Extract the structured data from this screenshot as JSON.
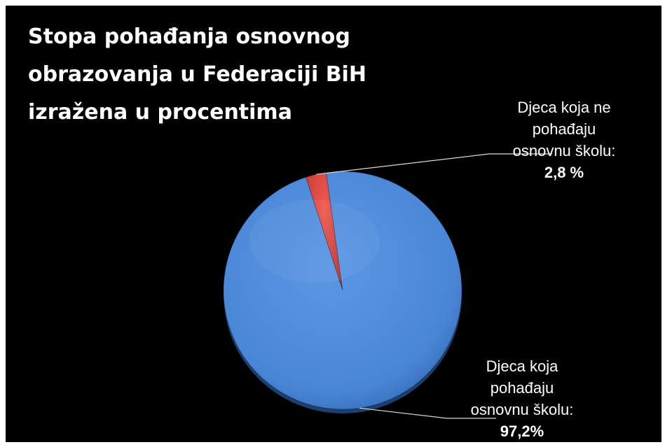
{
  "chart_data": {
    "type": "pie",
    "title": "Stopa pohađanja osnovnog obrazovanja u Federaciji BiH izražena u procentima",
    "start_angle_deg": -18,
    "direction": "clockwise",
    "three_d": true,
    "slices": [
      {
        "name": "Djeca koja ne pohađaju osnovnu školu",
        "label_lines": [
          "Djeca koja ne",
          "pohađaju",
          "osnovnu školu:"
        ],
        "value": 2.8,
        "value_label": "2,8 %",
        "color": "#e2403b"
      },
      {
        "name": "Djeca koja pohađaju osnovnu školu",
        "label_lines": [
          "Djeca koja",
          "pohađaju",
          "osnovnu školu:"
        ],
        "value": 97.2,
        "value_label": "97,2%",
        "color": "#4a86d6"
      }
    ]
  }
}
